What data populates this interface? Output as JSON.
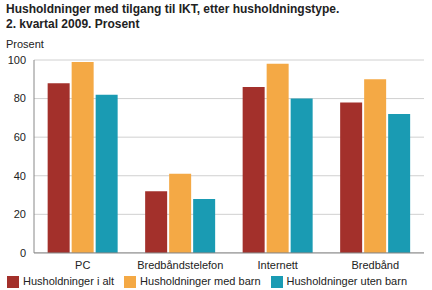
{
  "chart_data": {
    "type": "bar",
    "title": "Husholdninger med tilgang til IKT, etter husholdningstype.",
    "subtitle": "2. kvartal 2009. Prosent",
    "y_label": "Prosent",
    "categories": [
      "PC",
      "Bredbåndstelefon",
      "Internett",
      "Bredbånd"
    ],
    "series": [
      {
        "name": "Husholdninger i alt",
        "color": "#a3302b",
        "values": [
          88,
          32,
          86,
          78
        ]
      },
      {
        "name": "Husholdninger med barn",
        "color": "#f4a945",
        "values": [
          99,
          41,
          98,
          90
        ]
      },
      {
        "name": "Husholdninger uten barn",
        "color": "#1a9bb3",
        "values": [
          82,
          28,
          80,
          72
        ]
      }
    ],
    "ylim": [
      0,
      100
    ],
    "yticks": [
      0,
      20,
      40,
      60,
      80,
      100
    ],
    "grid": true,
    "legend": "bottom"
  }
}
